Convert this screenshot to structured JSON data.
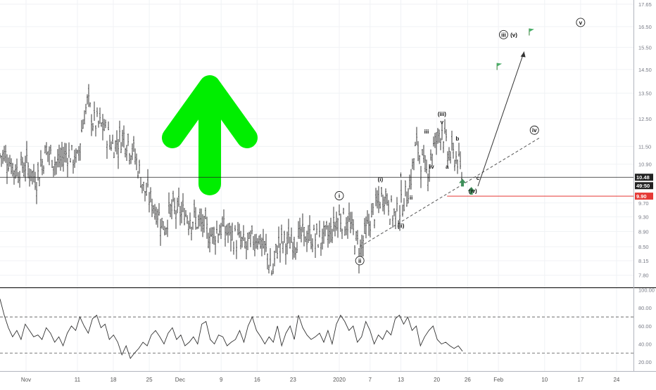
{
  "chart_data": [
    {
      "type": "candlestick",
      "x_ticks": [
        "Nov",
        "11",
        "18",
        "25",
        "Dec",
        "9",
        "16",
        "23",
        "2020",
        "7",
        "13",
        "20",
        "26",
        "Feb",
        "10",
        "17",
        "24"
      ],
      "y_ticks": [
        "17.65",
        "16.50",
        "15.50",
        "14.50",
        "13.50",
        "12.50",
        "11.50",
        "10.90",
        "9.70",
        "9.30",
        "8.90",
        "8.50",
        "8.15",
        "7.80"
      ],
      "ylim": [
        7.6,
        17.8
      ],
      "price_axis_scale": "log",
      "price_path": [
        {
          "x": "Oct 28",
          "y": 11.2
        },
        {
          "x": "Oct 30",
          "y": 10.7
        },
        {
          "x": "Nov 1",
          "y": 10.9
        },
        {
          "x": "Nov 3",
          "y": 10.4
        },
        {
          "x": "Nov 5",
          "y": 11.4
        },
        {
          "x": "Nov 7",
          "y": 10.9
        },
        {
          "x": "Nov 9",
          "y": 11.3
        },
        {
          "x": "Nov 11",
          "y": 11.0
        },
        {
          "x": "Nov 12",
          "y": 12.3
        },
        {
          "x": "Nov 13",
          "y": 13.2
        },
        {
          "x": "Nov 14",
          "y": 12.4
        },
        {
          "x": "Nov 16",
          "y": 12.2
        },
        {
          "x": "Nov 18",
          "y": 11.5
        },
        {
          "x": "Nov 20",
          "y": 11.9
        },
        {
          "x": "Nov 22",
          "y": 11.3
        },
        {
          "x": "Nov 24",
          "y": 10.1
        },
        {
          "x": "Nov 26",
          "y": 9.6
        },
        {
          "x": "Nov 28",
          "y": 9.0
        },
        {
          "x": "Nov 29",
          "y": 9.5
        },
        {
          "x": "Dec 2",
          "y": 9.4
        },
        {
          "x": "Dec 5",
          "y": 9.1
        },
        {
          "x": "Dec 7",
          "y": 8.8
        },
        {
          "x": "Dec 9",
          "y": 9.0
        },
        {
          "x": "Dec 12",
          "y": 8.7
        },
        {
          "x": "Dec 14",
          "y": 8.5
        },
        {
          "x": "Dec 16",
          "y": 8.8
        },
        {
          "x": "Dec 18",
          "y": 8.3
        },
        {
          "x": "Dec 19",
          "y": 7.8
        },
        {
          "x": "Dec 20",
          "y": 8.6
        },
        {
          "x": "Dec 22",
          "y": 8.6
        },
        {
          "x": "Dec 25",
          "y": 8.8
        },
        {
          "x": "Dec 28",
          "y": 8.7
        },
        {
          "x": "Dec 30",
          "y": 8.8
        },
        {
          "x": "Jan 1",
          "y": 9.3
        },
        {
          "x": "Jan 3",
          "y": 9.1
        },
        {
          "x": "Jan 5",
          "y": 8.4
        },
        {
          "x": "Jan 7",
          "y": 9.2
        },
        {
          "x": "Jan 9",
          "y": 9.8
        },
        {
          "x": "Jan 10",
          "y": 10.0
        },
        {
          "x": "Jan 11",
          "y": 9.5
        },
        {
          "x": "Jan 12",
          "y": 9.3
        },
        {
          "x": "Jan 14",
          "y": 9.9
        },
        {
          "x": "Jan 15",
          "y": 10.5
        },
        {
          "x": "Jan 16",
          "y": 11.6
        },
        {
          "x": "Jan 17",
          "y": 11.0
        },
        {
          "x": "Jan 18",
          "y": 10.6
        },
        {
          "x": "Jan 19",
          "y": 11.3
        },
        {
          "x": "Jan 21",
          "y": 12.2
        },
        {
          "x": "Jan 22",
          "y": 11.3
        },
        {
          "x": "Jan 24",
          "y": 11.1
        },
        {
          "x": "Jan 25",
          "y": 10.4
        }
      ],
      "horizontal_line": 10.48,
      "support_line": 9.9,
      "markers": [
        {
          "label": "10.48",
          "kind": "last-price"
        },
        {
          "label": "49:50",
          "kind": "countdown"
        },
        {
          "label": "9.90",
          "kind": "support-level",
          "color": "#e53935"
        }
      ],
      "arrow_color": "#00ee00",
      "annotations": [
        {
          "text": "i",
          "x": "Jan 1",
          "y": 9.85,
          "style": "circled"
        },
        {
          "text": "ii",
          "x": "Jan 5",
          "y": 8.1,
          "style": "circled"
        },
        {
          "text": "(i)",
          "x": "Jan 9",
          "y": 10.35
        },
        {
          "text": "(ii)",
          "x": "Jan 13",
          "y": 9.0
        },
        {
          "text": "i",
          "x": "Jan 13",
          "y": 10.5
        },
        {
          "text": "ii",
          "x": "Jan 15",
          "y": 9.8
        },
        {
          "text": "iii",
          "x": "Jan 18",
          "y": 11.95
        },
        {
          "text": "iv",
          "x": "Jan 19",
          "y": 10.75
        },
        {
          "text": "(iii)",
          "x": "Jan 21",
          "y": 12.6
        },
        {
          "text": "v",
          "x": "Jan 21",
          "y": 12.3
        },
        {
          "text": "a",
          "x": "Jan 22",
          "y": 10.75
        },
        {
          "text": "b",
          "x": "Jan 24",
          "y": 11.7
        },
        {
          "text": "c",
          "x": "Jan 28",
          "y": 10.4
        },
        {
          "text": "(iv)",
          "x": "Jan 27",
          "y": 10.0
        },
        {
          "text": "iii",
          "x": "Feb 2",
          "y": 16.0,
          "style": "circled"
        },
        {
          "text": "(v)",
          "x": "Feb 4",
          "y": 16.0
        },
        {
          "text": "iv",
          "x": "Feb 8",
          "y": 12.0,
          "style": "circled"
        },
        {
          "text": "v",
          "x": "Feb 17",
          "y": 16.6,
          "style": "circled"
        }
      ]
    },
    {
      "type": "line",
      "name": "oscillator",
      "y_ticks": [
        "100.00",
        "80.00",
        "60.00",
        "40.00",
        "20.00"
      ],
      "ylim": [
        10,
        102
      ],
      "reference_lines": [
        70,
        30
      ],
      "values": [
        90,
        72,
        58,
        48,
        55,
        45,
        62,
        55,
        48,
        50,
        45,
        58,
        52,
        42,
        48,
        38,
        52,
        60,
        55,
        70,
        60,
        52,
        68,
        72,
        58,
        62,
        45,
        50,
        42,
        28,
        38,
        24,
        30,
        35,
        42,
        38,
        50,
        55,
        48,
        40,
        52,
        58,
        45,
        50,
        38,
        42,
        48,
        40,
        62,
        65,
        45,
        40,
        50,
        48,
        38,
        42,
        45,
        55,
        42,
        60,
        70,
        55,
        48,
        40,
        48,
        42,
        60,
        38,
        52,
        60,
        45,
        72,
        58,
        50,
        45,
        48,
        52,
        42,
        55,
        40,
        62,
        72,
        65,
        55,
        60,
        42,
        48,
        65,
        55,
        40,
        50,
        45,
        55,
        50,
        68,
        72,
        62,
        70,
        55,
        60,
        38,
        48,
        55,
        60,
        45,
        40,
        42,
        38,
        35,
        38,
        32
      ]
    }
  ]
}
